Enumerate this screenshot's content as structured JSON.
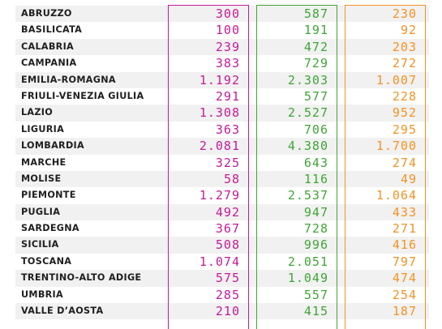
{
  "colors": {
    "col1": "#c51a98",
    "col2": "#3fa535",
    "col3": "#f39224"
  },
  "rows": [
    {
      "region": "ABRUZZO",
      "v1": "300",
      "v2": "587",
      "v3": "230"
    },
    {
      "region": "BASILICATA",
      "v1": "100",
      "v2": "191",
      "v3": "92"
    },
    {
      "region": "CALABRIA",
      "v1": "239",
      "v2": "472",
      "v3": "203"
    },
    {
      "region": "CAMPANIA",
      "v1": "383",
      "v2": "729",
      "v3": "272"
    },
    {
      "region": "EMILIA-ROMAGNA",
      "v1": "1.192",
      "v2": "2.303",
      "v3": "1.007"
    },
    {
      "region": "FRIULI-VENEZIA GIULIA",
      "v1": "291",
      "v2": "577",
      "v3": "228"
    },
    {
      "region": "LAZIO",
      "v1": "1.308",
      "v2": "2.527",
      "v3": "952"
    },
    {
      "region": "LIGURIA",
      "v1": "363",
      "v2": "706",
      "v3": "295"
    },
    {
      "region": "LOMBARDIA",
      "v1": "2.081",
      "v2": "4.380",
      "v3": "1.700"
    },
    {
      "region": "MARCHE",
      "v1": "325",
      "v2": "643",
      "v3": "274"
    },
    {
      "region": "MOLISE",
      "v1": "58",
      "v2": "116",
      "v3": "49"
    },
    {
      "region": "PIEMONTE",
      "v1": "1.279",
      "v2": "2.537",
      "v3": "1.064"
    },
    {
      "region": "PUGLIA",
      "v1": "492",
      "v2": "947",
      "v3": "433"
    },
    {
      "region": "SARDEGNA",
      "v1": "367",
      "v2": "728",
      "v3": "271"
    },
    {
      "region": "SICILIA",
      "v1": "508",
      "v2": "996",
      "v3": "416"
    },
    {
      "region": "TOSCANA",
      "v1": "1.074",
      "v2": "2.051",
      "v3": "797"
    },
    {
      "region": "TRENTINO-ALTO ADIGE",
      "v1": "575",
      "v2": "1.049",
      "v3": "474"
    },
    {
      "region": "UMBRIA",
      "v1": "285",
      "v2": "557",
      "v3": "254"
    },
    {
      "region": "VALLE D’AOSTA",
      "v1": "210",
      "v2": "415",
      "v3": "187"
    }
  ]
}
